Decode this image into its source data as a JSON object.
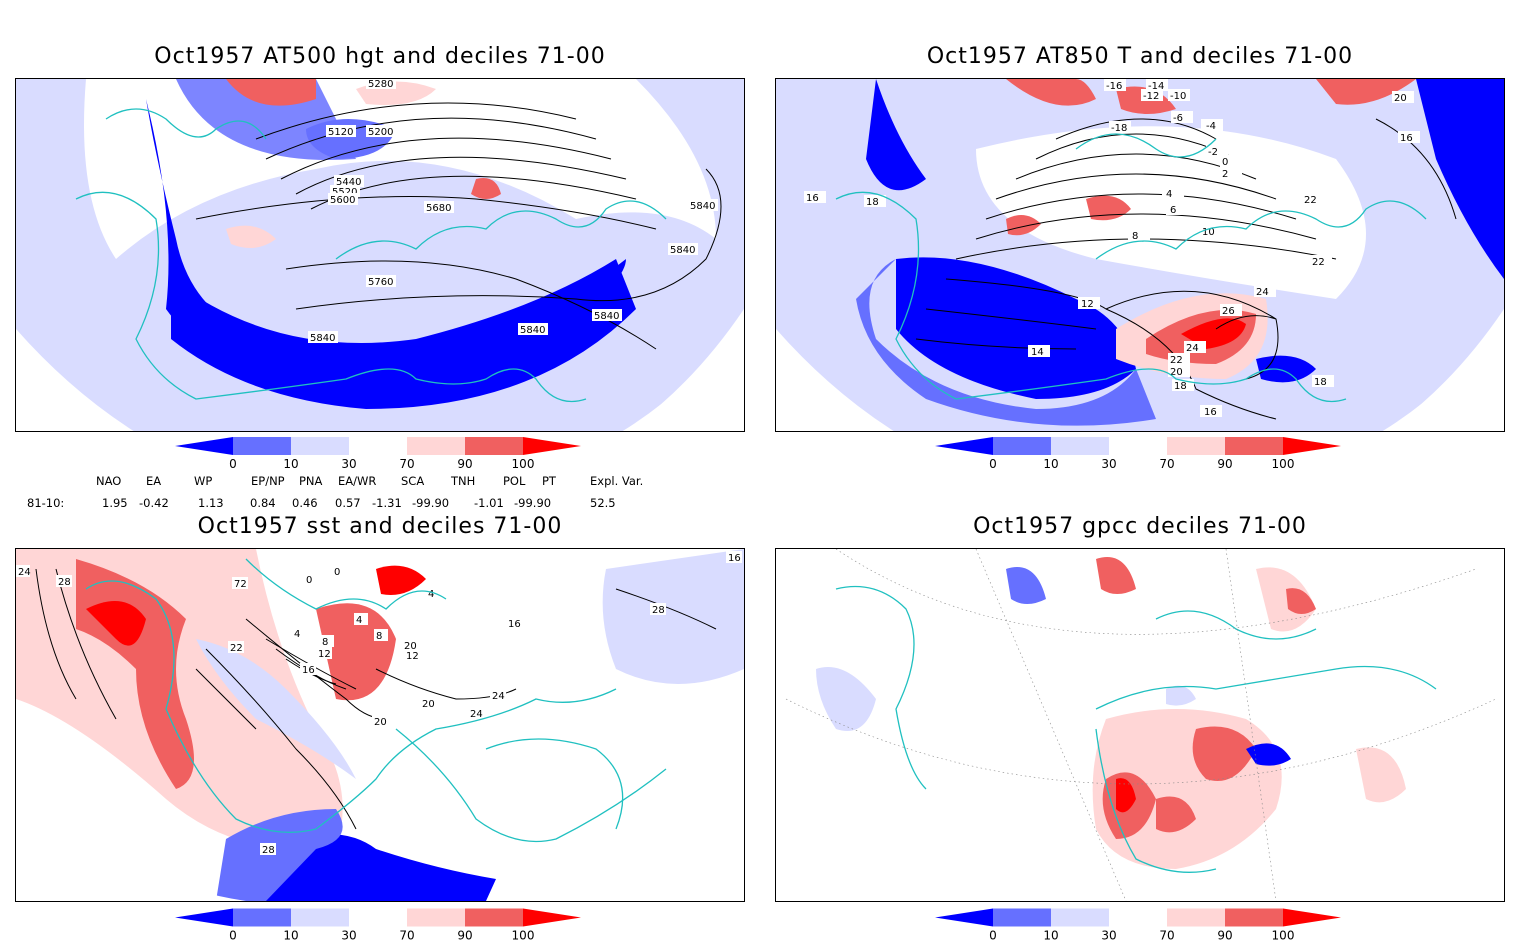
{
  "panels": [
    {
      "title": "Oct1957 AT500 hgt and deciles 71-00",
      "contour_labels": [
        "5120",
        "5200",
        "5280",
        "5440",
        "5520",
        "5600",
        "5680",
        "5760",
        "5840",
        "5840",
        "5840",
        "5840",
        "5840"
      ]
    },
    {
      "title": "Oct1957 AT850 T and deciles 71-00",
      "contour_labels": [
        "-16",
        "-14",
        "-12",
        "-10",
        "-18",
        "-6",
        "-4",
        "-2",
        "0",
        "2",
        "4",
        "6",
        "8",
        "10",
        "12",
        "14",
        "16",
        "16",
        "18",
        "18",
        "20",
        "20",
        "22",
        "22",
        "22",
        "24",
        "24",
        "26",
        "16",
        "18"
      ]
    },
    {
      "title": "Oct1957 sst and deciles 71-00",
      "contour_labels": [
        "24",
        "28",
        "0",
        "0",
        "4",
        "4",
        "4",
        "8",
        "8",
        "12",
        "12",
        "16",
        "16",
        "20",
        "20",
        "20",
        "24",
        "24",
        "22",
        "28",
        "28",
        "16",
        "72"
      ]
    },
    {
      "title": "Oct1957 gpcc deciles 71-00",
      "contour_labels": []
    }
  ],
  "colorbar": {
    "tick_labels": [
      "0",
      "10",
      "30",
      "70",
      "90",
      "100"
    ],
    "colors": [
      "#0000ff",
      "#6670ff",
      "#d9dcff",
      "#ffffff",
      "#ffd6d6",
      "#f06060",
      "#ff0000"
    ]
  },
  "indices": {
    "headers": [
      "NAO",
      "EA",
      "WP",
      "EP/NP",
      "PNA",
      "EA/WR",
      "SCA",
      "TNH",
      "POL",
      "PT",
      "Expl. Var."
    ],
    "row_label": "81-10:",
    "values": [
      "1.95",
      "-0.42",
      "1.13",
      "0.84",
      "0.46",
      "0.57",
      "-1.31",
      "-99.90",
      "-1.01",
      "-99.90",
      "52.5"
    ]
  },
  "colors": {
    "coast": "#20c0c0",
    "contour": "#000000"
  }
}
